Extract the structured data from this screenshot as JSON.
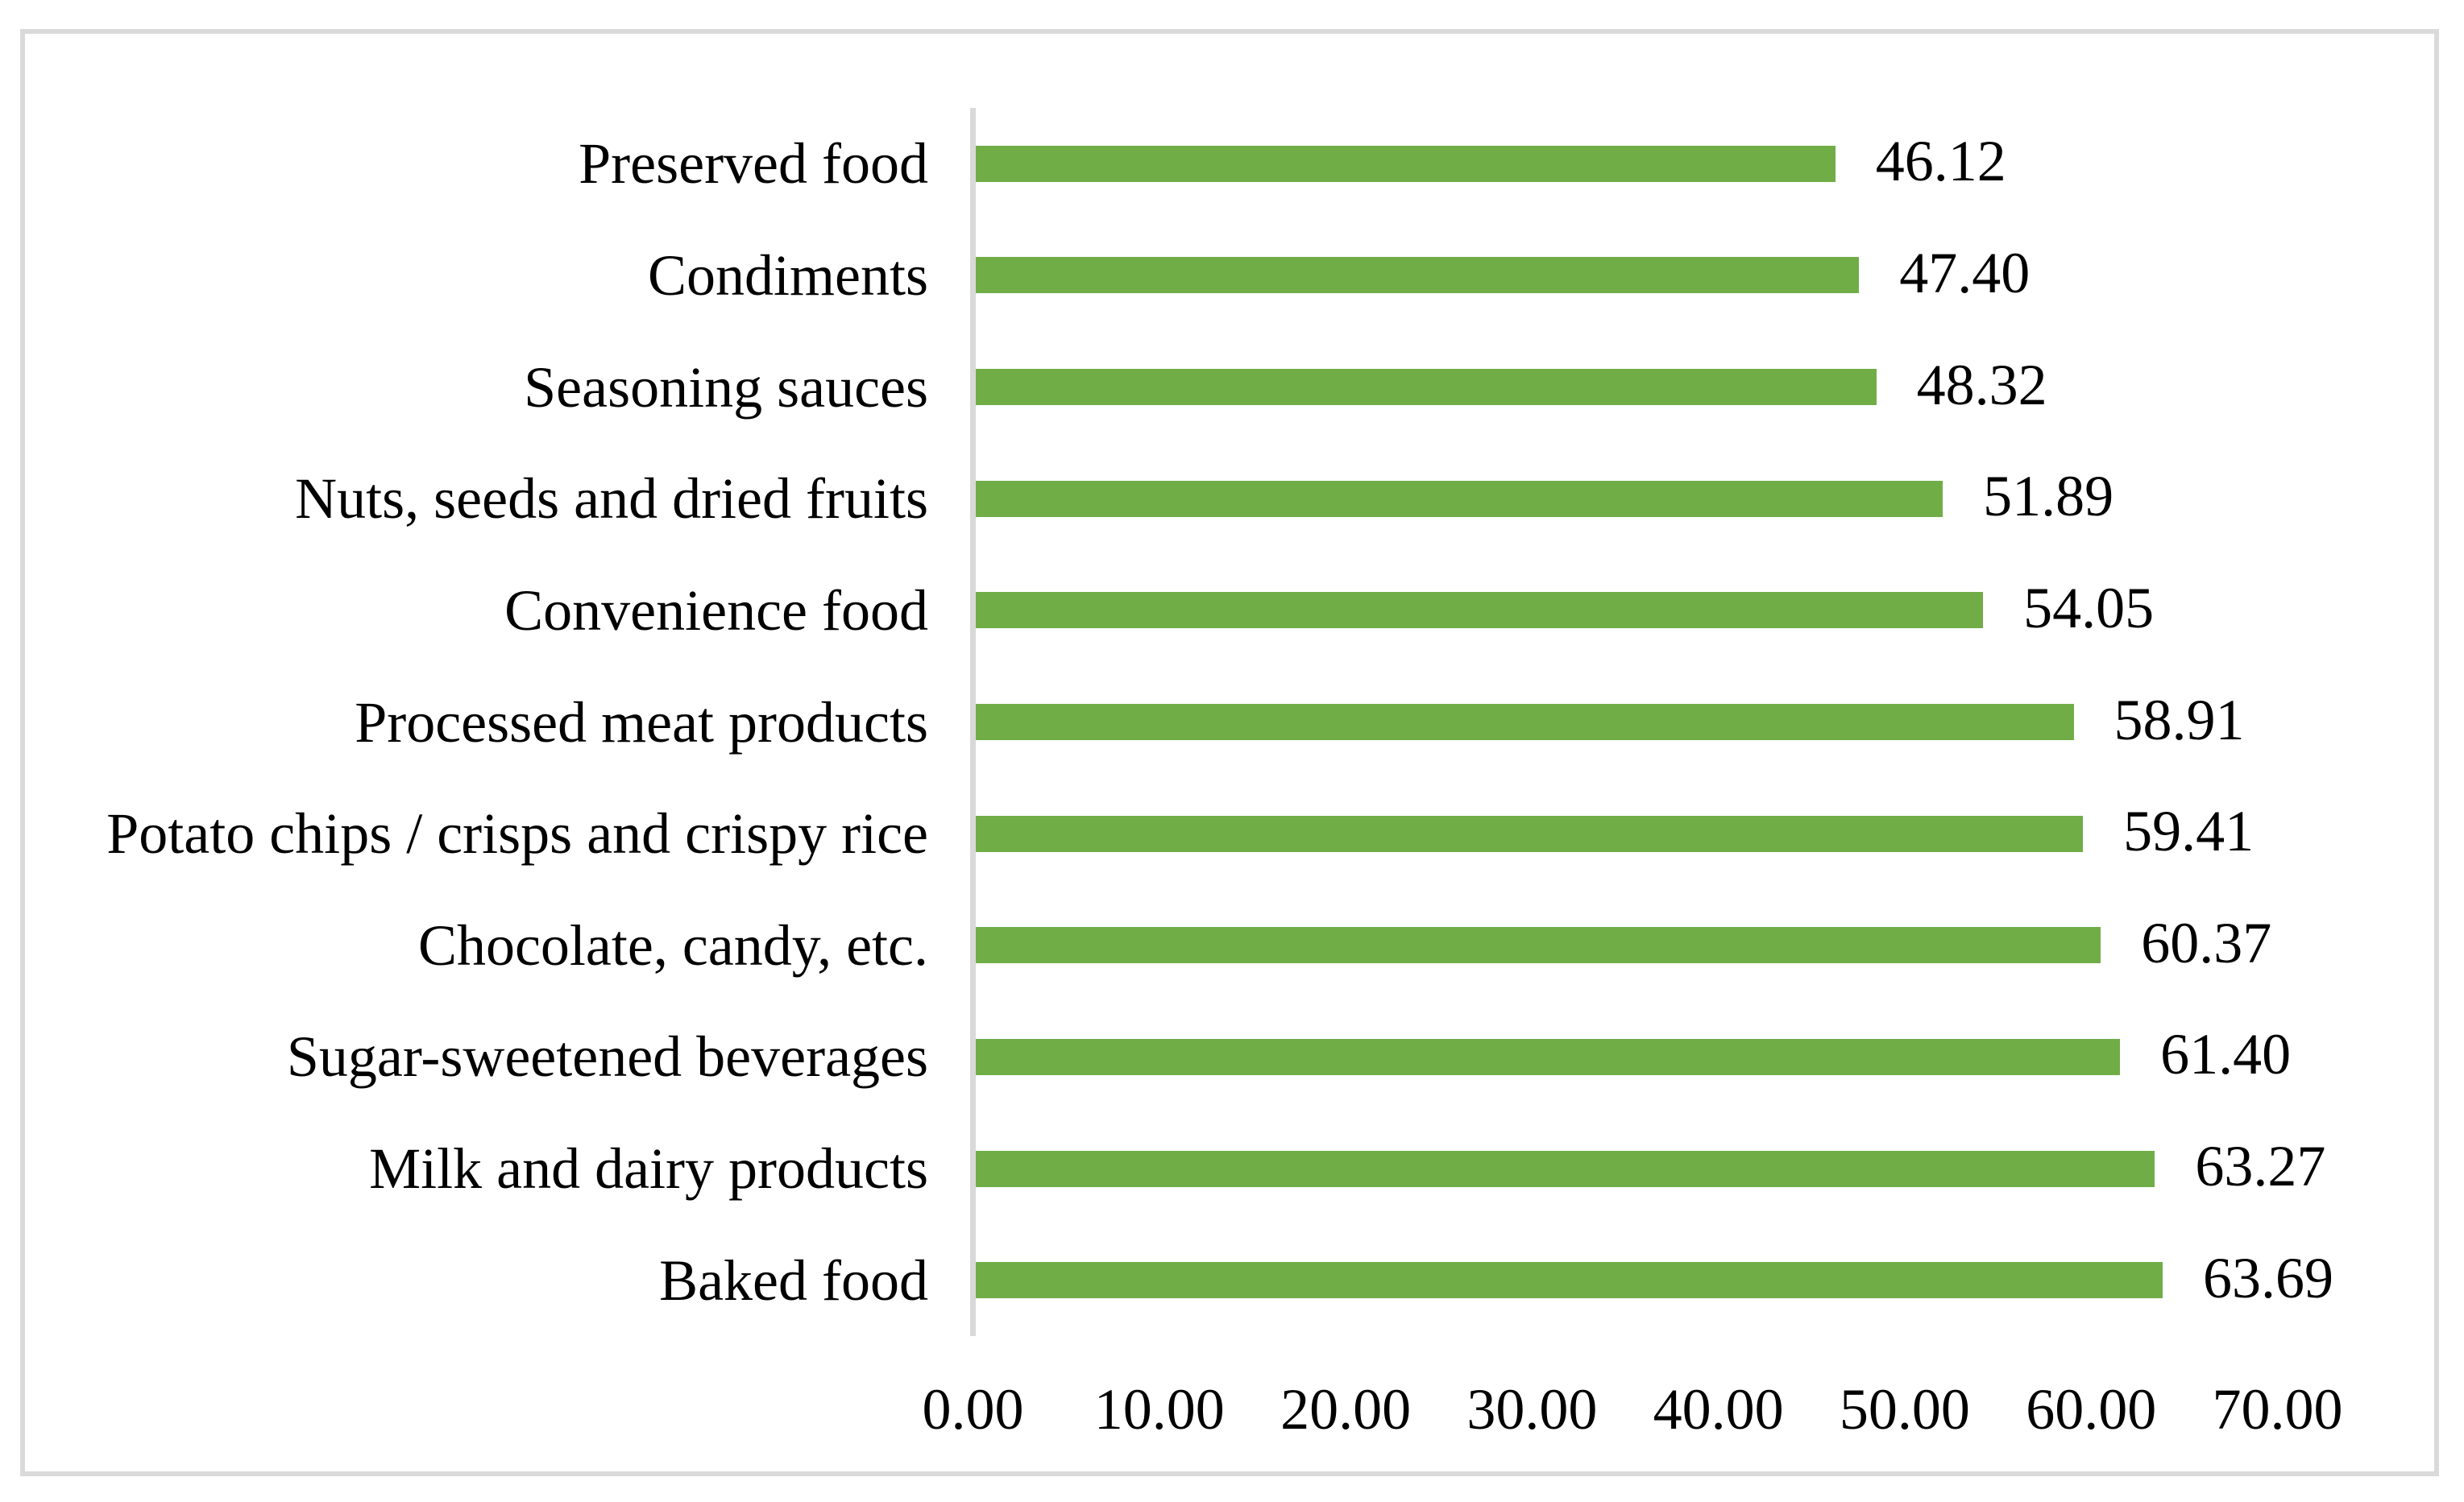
{
  "chart_data": {
    "type": "bar",
    "orientation": "horizontal",
    "title": "",
    "xlabel": "",
    "ylabel": "",
    "categories": [
      "Preserved food",
      "Condiments",
      "Seasoning sauces",
      "Nuts, seeds and dried fruits",
      "Convenience food",
      "Processed meat products",
      "Potato chips / crisps and crispy rice",
      "Chocolate, candy, etc.",
      "Sugar-sweetened beverages",
      "Milk and dairy products",
      "Baked food"
    ],
    "values": [
      46.12,
      47.4,
      48.32,
      51.89,
      54.05,
      58.91,
      59.41,
      60.37,
      61.4,
      63.27,
      63.69
    ],
    "value_labels": [
      "46.12",
      "47.40",
      "48.32",
      "51.89",
      "54.05",
      "58.91",
      "59.41",
      "60.37",
      "61.40",
      "63.27",
      "63.69"
    ],
    "x_ticks": [
      "0.00",
      "10.00",
      "20.00",
      "30.00",
      "40.00",
      "50.00",
      "60.00",
      "70.00"
    ],
    "x_tick_values": [
      0,
      10,
      20,
      30,
      40,
      50,
      60,
      70
    ],
    "xlim": [
      0,
      70
    ],
    "grid": false,
    "legend": false,
    "bar_color": "#70ad47",
    "axis_line_color": "#d9d9d9",
    "frame_border_color": "#dadada",
    "text_color": "#000000"
  }
}
